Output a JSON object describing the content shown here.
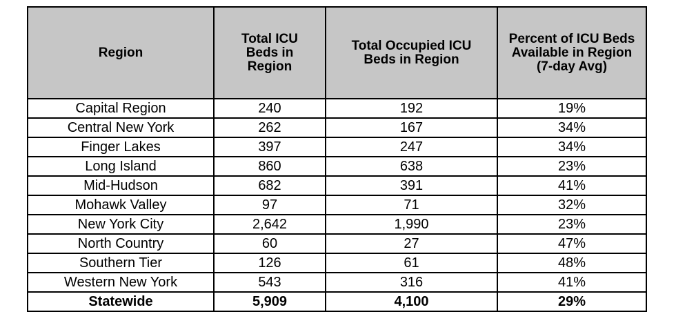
{
  "table": {
    "headers": [
      "Region",
      "Total ICU Beds in Region",
      "Total Occupied ICU Beds in Region",
      "Percent of ICU Beds Available in Region (7-day Avg)"
    ],
    "rows": [
      [
        "Capital Region",
        "240",
        "192",
        "19%"
      ],
      [
        "Central New York",
        "262",
        "167",
        "34%"
      ],
      [
        "Finger Lakes",
        "397",
        "247",
        "34%"
      ],
      [
        "Long Island",
        "860",
        "638",
        "23%"
      ],
      [
        "Mid-Hudson",
        "682",
        "391",
        "41%"
      ],
      [
        "Mohawk Valley",
        "97",
        "71",
        "32%"
      ],
      [
        "New York City",
        "2,642",
        "1,990",
        "23%"
      ],
      [
        "North Country",
        "60",
        "27",
        "47%"
      ],
      [
        "Southern Tier",
        "126",
        "61",
        "48%"
      ],
      [
        "Western New York",
        "543",
        "316",
        "41%"
      ]
    ],
    "total": [
      "Statewide",
      "5,909",
      "4,100",
      "29%"
    ]
  }
}
